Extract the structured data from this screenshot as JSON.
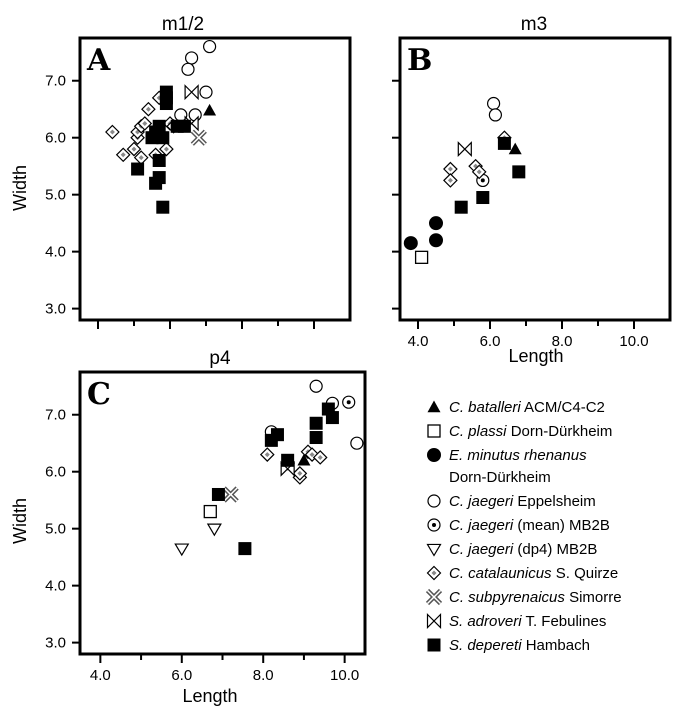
{
  "chart_data": [
    {
      "type": "scatter",
      "title": "m1/2",
      "panel_letter": "A",
      "ylabel": "Width",
      "xlabel": "",
      "xlim": [
        3.5,
        11.0
      ],
      "ylim": [
        2.8,
        7.75
      ],
      "xticks": [],
      "yticks": [
        "3.0",
        "4.0",
        "5.0",
        "6.0",
        "7.0"
      ],
      "series": [
        {
          "marker": "filled-triangle",
          "points": [
            [
              7.1,
              6.48
            ]
          ]
        },
        {
          "marker": "open-circle",
          "points": [
            [
              7.1,
              7.6
            ],
            [
              6.6,
              7.4
            ],
            [
              6.5,
              7.2
            ],
            [
              7.0,
              6.8
            ],
            [
              6.7,
              6.4
            ],
            [
              6.3,
              6.4
            ]
          ]
        },
        {
          "marker": "diamond",
          "points": [
            [
              4.4,
              6.1
            ],
            [
              4.7,
              5.7
            ],
            [
              5.0,
              5.8
            ],
            [
              5.1,
              6.0
            ],
            [
              5.1,
              6.1
            ],
            [
              5.2,
              6.2
            ],
            [
              5.3,
              6.25
            ],
            [
              5.4,
              6.5
            ],
            [
              5.7,
              6.7
            ],
            [
              5.2,
              5.65
            ],
            [
              5.6,
              5.7
            ],
            [
              5.9,
              5.8
            ],
            [
              6.0,
              6.25
            ],
            [
              6.1,
              6.2
            ]
          ]
        },
        {
          "marker": "x-cross",
          "points": [
            [
              6.8,
              6.0
            ]
          ]
        },
        {
          "marker": "bowtie",
          "points": [
            [
              6.6,
              6.8
            ],
            [
              6.6,
              6.25
            ]
          ]
        },
        {
          "marker": "filled-square",
          "points": [
            [
              5.9,
              6.8
            ],
            [
              5.9,
              6.7
            ],
            [
              5.9,
              6.6
            ],
            [
              5.7,
              6.2
            ],
            [
              6.4,
              6.2
            ],
            [
              5.6,
              6.1
            ],
            [
              5.8,
              6.0
            ],
            [
              5.5,
              6.0
            ],
            [
              5.1,
              5.45
            ],
            [
              5.7,
              5.6
            ],
            [
              5.7,
              5.3
            ],
            [
              5.6,
              5.2
            ],
            [
              5.8,
              4.78
            ],
            [
              6.2,
              6.2
            ]
          ]
        }
      ]
    },
    {
      "type": "scatter",
      "title": "m3",
      "panel_letter": "B",
      "xlabel": "Length",
      "ylabel": "",
      "xlim": [
        3.5,
        11.0
      ],
      "ylim": [
        2.8,
        7.75
      ],
      "xticks": [
        "4.0",
        "6.0",
        "8.0",
        "10.0"
      ],
      "yticks": [],
      "series": [
        {
          "marker": "filled-triangle",
          "points": [
            [
              6.7,
              5.8
            ]
          ]
        },
        {
          "marker": "open-square",
          "points": [
            [
              4.1,
              3.9
            ]
          ]
        },
        {
          "marker": "filled-circle",
          "points": [
            [
              3.8,
              4.15
            ],
            [
              4.5,
              4.5
            ],
            [
              4.5,
              4.2
            ]
          ]
        },
        {
          "marker": "open-circle",
          "points": [
            [
              6.1,
              6.6
            ],
            [
              6.15,
              6.4
            ]
          ]
        },
        {
          "marker": "dotted-circle",
          "points": [
            [
              5.8,
              5.25
            ]
          ]
        },
        {
          "marker": "diamond",
          "points": [
            [
              4.9,
              5.45
            ],
            [
              4.9,
              5.25
            ],
            [
              5.6,
              5.5
            ],
            [
              5.7,
              5.4
            ],
            [
              6.4,
              6.0
            ]
          ]
        },
        {
          "marker": "bowtie",
          "points": [
            [
              5.3,
              5.8
            ]
          ]
        },
        {
          "marker": "filled-square",
          "points": [
            [
              6.4,
              5.9
            ],
            [
              6.8,
              5.4
            ],
            [
              5.8,
              4.95
            ],
            [
              5.2,
              4.78
            ]
          ]
        }
      ]
    },
    {
      "type": "scatter",
      "title": "p4",
      "panel_letter": "C",
      "xlabel": "Length",
      "ylabel": "Width",
      "xlim": [
        3.5,
        10.5
      ],
      "ylim": [
        2.8,
        7.75
      ],
      "xticks": [
        "4.0",
        "6.0",
        "8.0",
        "10.0"
      ],
      "yticks": [
        "3.0",
        "4.0",
        "5.0",
        "6.0",
        "7.0"
      ],
      "series": [
        {
          "marker": "filled-triangle",
          "points": [
            [
              9.0,
              6.2
            ]
          ]
        },
        {
          "marker": "open-square",
          "points": [
            [
              6.7,
              5.3
            ]
          ]
        },
        {
          "marker": "open-circle",
          "points": [
            [
              9.3,
              7.5
            ],
            [
              9.7,
              7.2
            ],
            [
              10.3,
              6.5
            ],
            [
              8.2,
              6.7
            ]
          ]
        },
        {
          "marker": "dotted-circle",
          "points": [
            [
              10.1,
              7.22
            ]
          ]
        },
        {
          "marker": "open-triangle-down",
          "points": [
            [
              6.0,
              4.65
            ],
            [
              6.8,
              5.0
            ]
          ]
        },
        {
          "marker": "diamond",
          "points": [
            [
              8.1,
              6.3
            ],
            [
              8.6,
              6.15
            ],
            [
              8.9,
              5.9
            ],
            [
              9.1,
              6.35
            ],
            [
              9.2,
              6.3
            ],
            [
              9.4,
              6.25
            ],
            [
              8.9,
              5.97
            ]
          ]
        },
        {
          "marker": "x-cross",
          "points": [
            [
              7.2,
              5.6
            ]
          ]
        },
        {
          "marker": "bowtie",
          "points": [
            [
              8.6,
              6.05
            ]
          ]
        },
        {
          "marker": "filled-square",
          "points": [
            [
              6.9,
              5.6
            ],
            [
              7.55,
              4.65
            ],
            [
              8.2,
              6.55
            ],
            [
              8.35,
              6.65
            ],
            [
              8.6,
              6.2
            ],
            [
              9.3,
              6.6
            ],
            [
              9.3,
              6.85
            ],
            [
              9.6,
              7.1
            ],
            [
              9.7,
              6.95
            ]
          ]
        }
      ]
    }
  ],
  "legend": [
    {
      "marker": "filled-triangle",
      "italic": "C. batalleri",
      "rest": " ACM/C4-C2"
    },
    {
      "marker": "open-square",
      "italic": "C. plassi",
      "rest": " Dorn-Dürkheim"
    },
    {
      "marker": "filled-circle",
      "italic": "E. minutus rhenanus",
      "rest": "",
      "line2": "Dorn-Dürkheim"
    },
    {
      "marker": "open-circle",
      "italic": "C. jaegeri",
      "rest": " Eppelsheim"
    },
    {
      "marker": "dotted-circle",
      "italic": "C. jaegeri",
      "rest": " (mean) MB2B"
    },
    {
      "marker": "open-triangle-down",
      "italic": "C. jaegeri",
      "rest": " (dp4) MB2B"
    },
    {
      "marker": "diamond",
      "italic": "C. catalaunicus",
      "rest": " S. Quirze"
    },
    {
      "marker": "x-cross",
      "italic": "C. subpyrenaicus",
      "rest": " Simorre"
    },
    {
      "marker": "bowtie",
      "italic": "S. adroveri",
      "rest": " T. Febulines"
    },
    {
      "marker": "filled-square",
      "italic": "S. depereti",
      "rest": " Hambach"
    }
  ]
}
